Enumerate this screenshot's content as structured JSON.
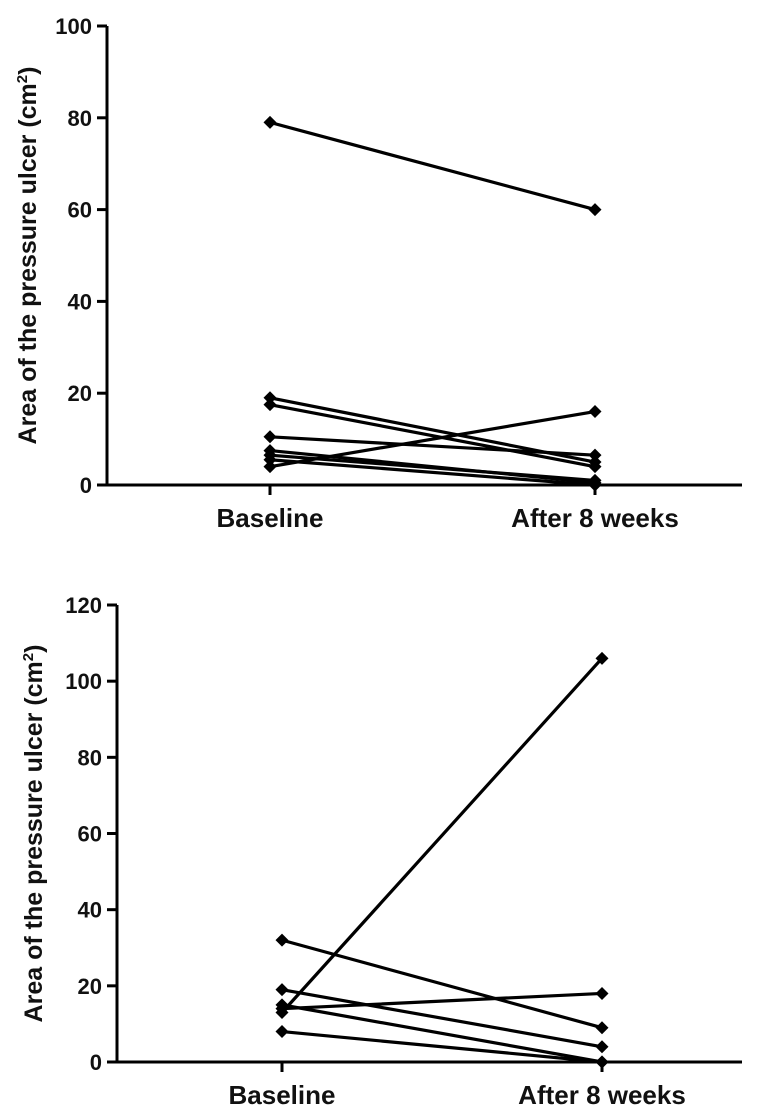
{
  "chart_data": [
    {
      "type": "line",
      "title": "",
      "xlabel": "",
      "ylabel_main": "Area of the pressure ulcer (cm",
      "ylabel_sup": "2",
      "ylabel_close": ")",
      "categories": [
        "Baseline",
        "After 8 weeks"
      ],
      "ylim": [
        0,
        100
      ],
      "yticks": [
        0,
        20,
        40,
        60,
        80,
        100
      ],
      "grid": false,
      "series": [
        {
          "values": [
            79,
            60
          ]
        },
        {
          "values": [
            19,
            5
          ]
        },
        {
          "values": [
            17.5,
            4
          ]
        },
        {
          "values": [
            10.5,
            6.5
          ]
        },
        {
          "values": [
            7.5,
            0.5
          ]
        },
        {
          "values": [
            6.5,
            1
          ]
        },
        {
          "values": [
            5.5,
            0
          ]
        },
        {
          "values": [
            4,
            16
          ]
        }
      ]
    },
    {
      "type": "line",
      "title": "",
      "xlabel": "",
      "ylabel_main": "Area of the pressure ulcer (cm",
      "ylabel_sup": "2",
      "ylabel_close": ")",
      "categories": [
        "Baseline",
        "After 8 weeks"
      ],
      "ylim": [
        0,
        120
      ],
      "yticks": [
        0,
        20,
        40,
        60,
        80,
        100,
        120
      ],
      "grid": false,
      "series": [
        {
          "values": [
            13,
            106
          ]
        },
        {
          "values": [
            32,
            9
          ]
        },
        {
          "values": [
            19,
            4
          ]
        },
        {
          "values": [
            15,
            0
          ]
        },
        {
          "values": [
            14,
            18
          ]
        },
        {
          "values": [
            8,
            0
          ]
        }
      ]
    }
  ]
}
